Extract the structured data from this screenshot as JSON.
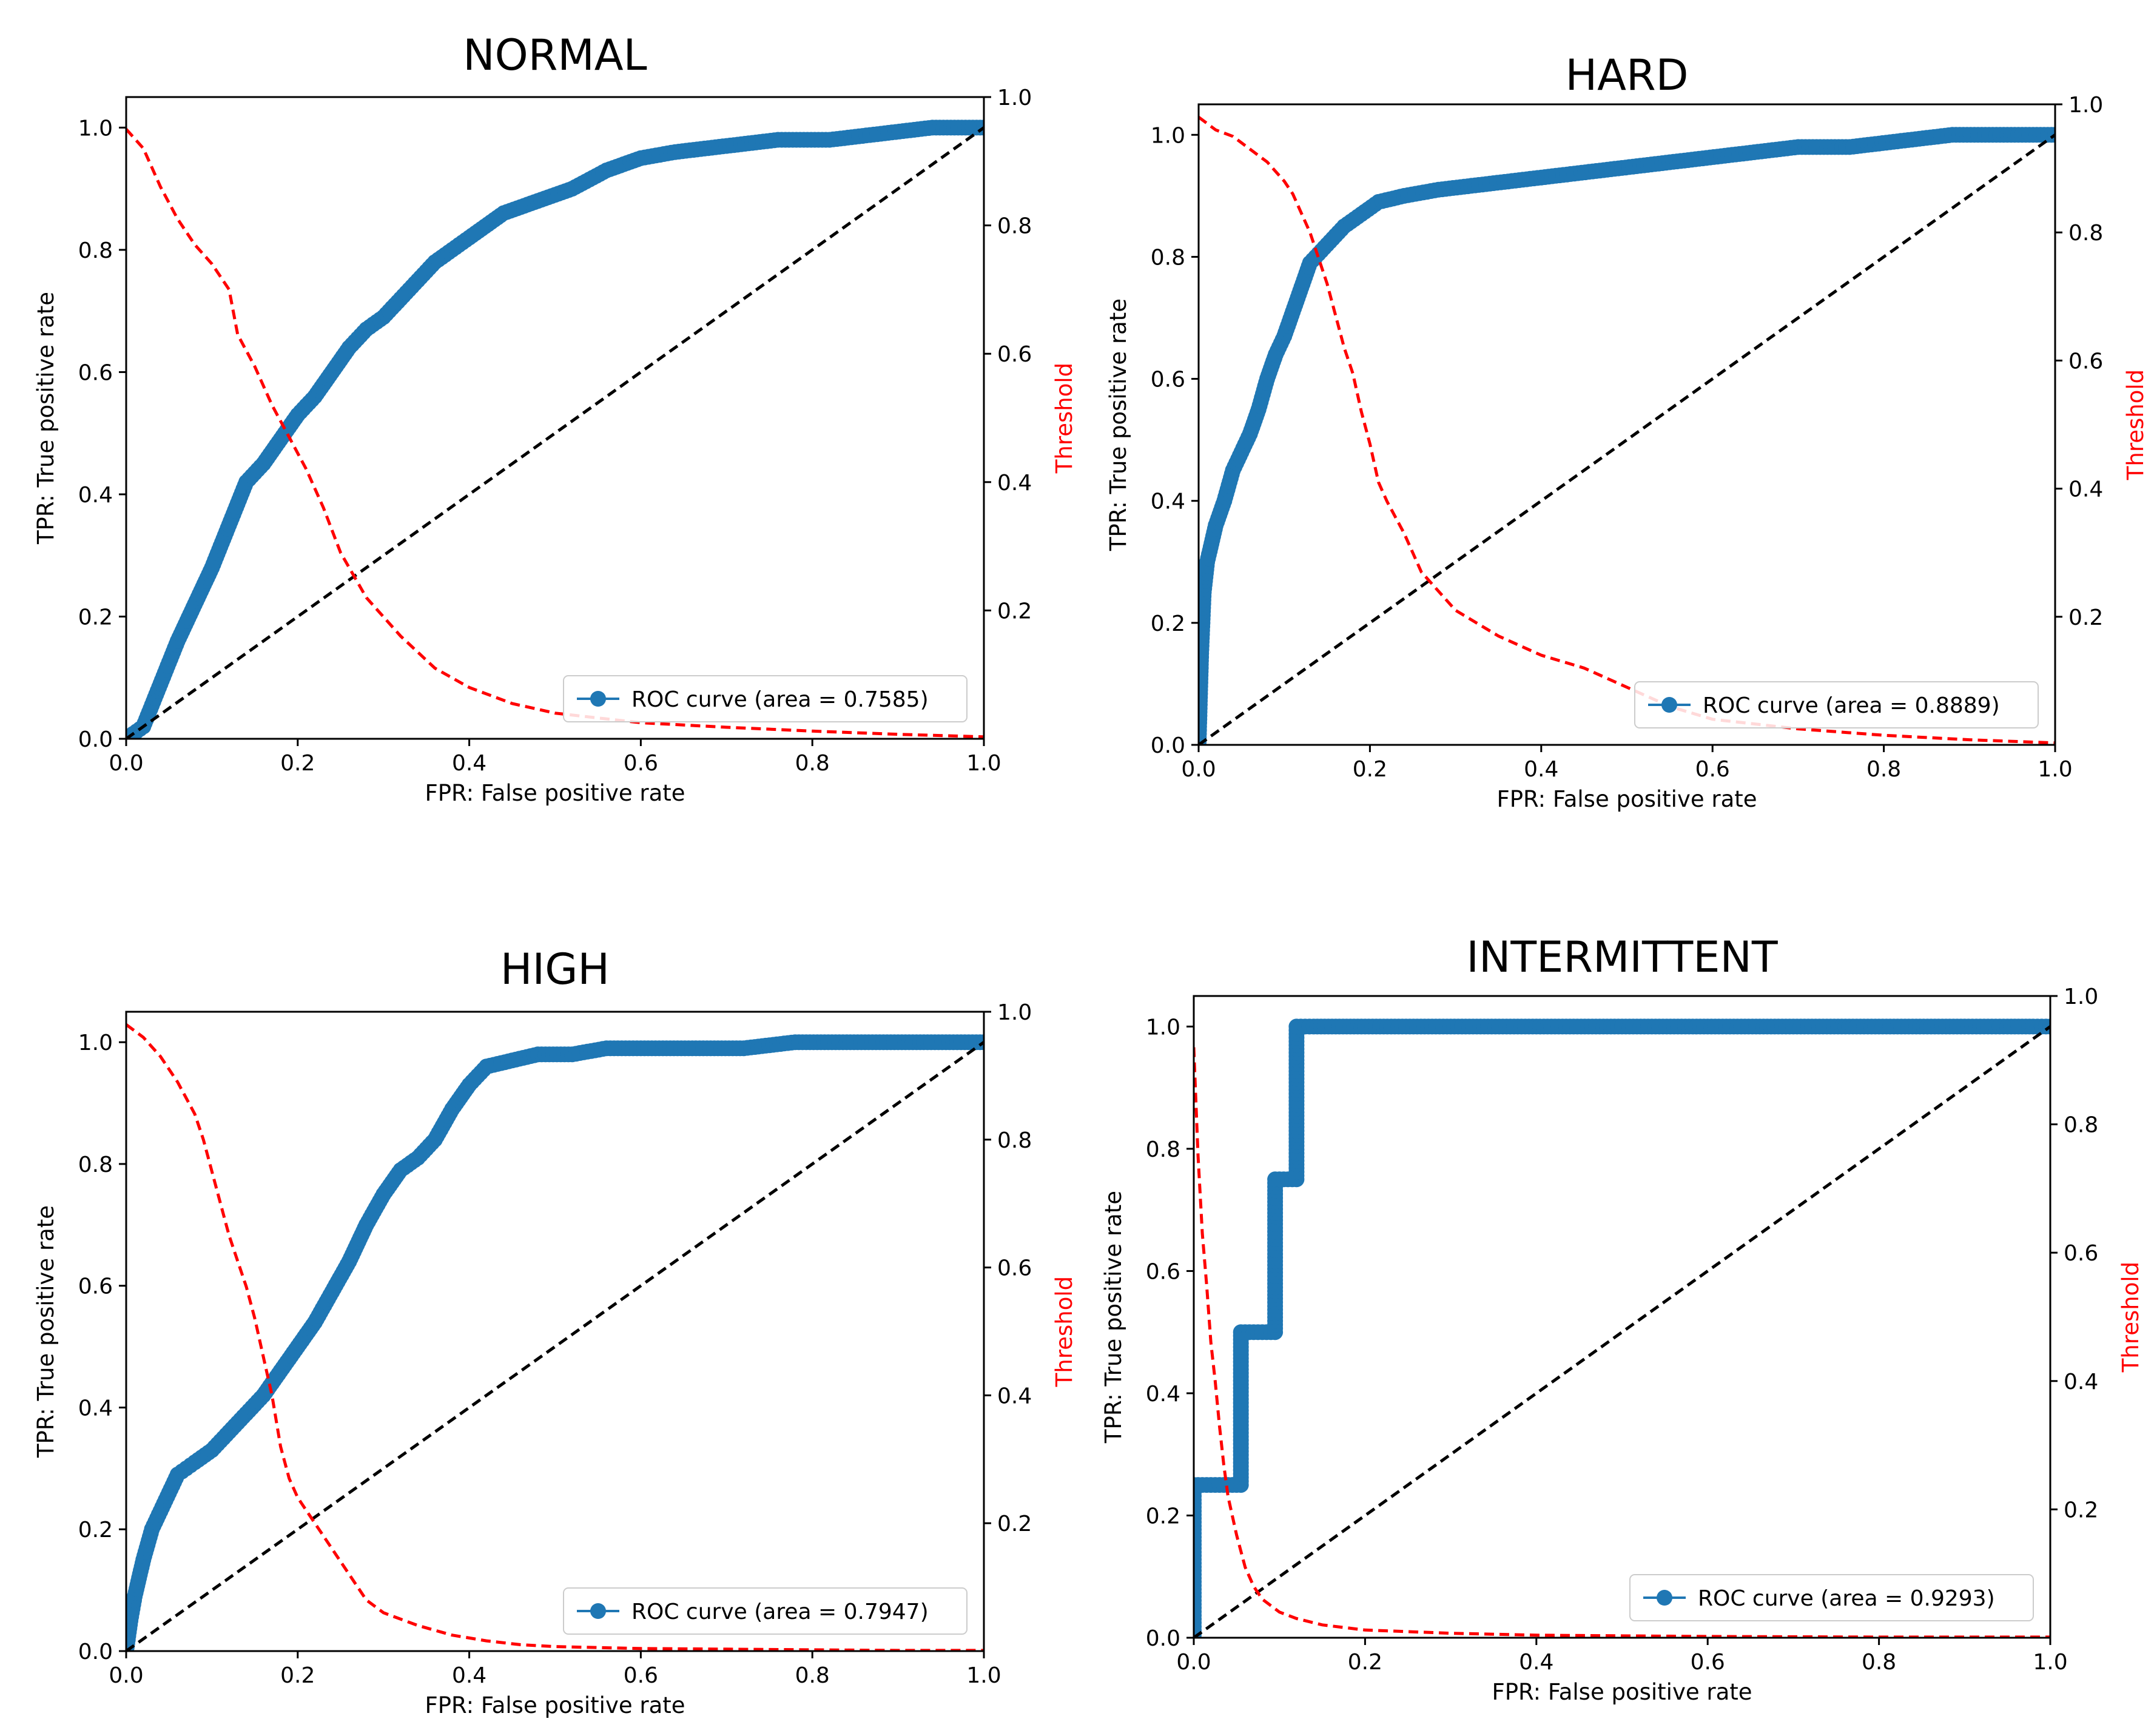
{
  "chart_data": [
    {
      "type": "line",
      "title": "NORMAL",
      "xlabel": "FPR: False positive rate",
      "ylabel": "TPR: True positive rate",
      "y2label": "Threshold",
      "xlim": [
        0,
        1
      ],
      "ylim": [
        0,
        1.05
      ],
      "y2lim": [
        0,
        1
      ],
      "xticks": [
        "0.0",
        "0.2",
        "0.4",
        "0.6",
        "0.8",
        "1.0"
      ],
      "yticks": [
        "0.0",
        "0.2",
        "0.4",
        "0.6",
        "0.8",
        "1.0"
      ],
      "y2ticks": [
        "0.2",
        "0.4",
        "0.6",
        "0.8",
        "1.0"
      ],
      "legend": {
        "label": "ROC curve (area = 0.7585)",
        "position": "lower right"
      },
      "series": [
        {
          "name": "ROC curve (area = 0.7585)",
          "color": "#1f77b4",
          "style": "markers",
          "x": [
            0,
            0.02,
            0.04,
            0.06,
            0.08,
            0.1,
            0.12,
            0.14,
            0.16,
            0.18,
            0.2,
            0.22,
            0.24,
            0.26,
            0.28,
            0.3,
            0.32,
            0.34,
            0.36,
            0.38,
            0.4,
            0.44,
            0.48,
            0.52,
            0.56,
            0.6,
            0.64,
            0.7,
            0.76,
            0.82,
            0.88,
            0.94,
            1.0
          ],
          "y": [
            0,
            0.02,
            0.09,
            0.16,
            0.22,
            0.28,
            0.35,
            0.42,
            0.45,
            0.49,
            0.53,
            0.56,
            0.6,
            0.64,
            0.67,
            0.69,
            0.72,
            0.75,
            0.78,
            0.8,
            0.82,
            0.86,
            0.88,
            0.9,
            0.93,
            0.95,
            0.96,
            0.97,
            0.98,
            0.98,
            0.99,
            1.0,
            1.0
          ]
        },
        {
          "name": "Chance",
          "color": "#000000",
          "style": "dashed",
          "x": [
            0,
            1
          ],
          "y": [
            0,
            1
          ]
        },
        {
          "name": "Threshold",
          "color": "#ff0000",
          "style": "dashed",
          "axis": "y2",
          "x": [
            0,
            0.02,
            0.04,
            0.06,
            0.08,
            0.1,
            0.12,
            0.13,
            0.15,
            0.17,
            0.19,
            0.21,
            0.23,
            0.25,
            0.28,
            0.32,
            0.36,
            0.4,
            0.45,
            0.5,
            0.6,
            0.7,
            0.8,
            0.9,
            1.0
          ],
          "y": [
            0.95,
            0.92,
            0.86,
            0.81,
            0.77,
            0.74,
            0.7,
            0.63,
            0.58,
            0.52,
            0.47,
            0.42,
            0.36,
            0.29,
            0.22,
            0.16,
            0.11,
            0.08,
            0.055,
            0.04,
            0.025,
            0.018,
            0.012,
            0.007,
            0.003
          ]
        }
      ]
    },
    {
      "type": "line",
      "title": "HARD",
      "xlabel": "FPR: False positive rate",
      "ylabel": "TPR: True positive rate",
      "y2label": "Threshold",
      "xlim": [
        0,
        1
      ],
      "ylim": [
        0,
        1.05
      ],
      "y2lim": [
        0,
        1
      ],
      "xticks": [
        "0.0",
        "0.2",
        "0.4",
        "0.6",
        "0.8",
        "1.0"
      ],
      "yticks": [
        "0.0",
        "0.2",
        "0.4",
        "0.6",
        "0.8",
        "1.0"
      ],
      "y2ticks": [
        "0.2",
        "0.4",
        "0.6",
        "0.8",
        "1.0"
      ],
      "legend": {
        "label": "ROC curve (area = 0.8889)",
        "position": "lower right"
      },
      "series": [
        {
          "name": "ROC curve (area = 0.8889)",
          "color": "#1f77b4",
          "style": "markers",
          "x": [
            0,
            0.003,
            0.006,
            0.01,
            0.015,
            0.02,
            0.03,
            0.04,
            0.05,
            0.06,
            0.07,
            0.08,
            0.09,
            0.1,
            0.11,
            0.12,
            0.13,
            0.15,
            0.17,
            0.19,
            0.21,
            0.24,
            0.28,
            0.34,
            0.4,
            0.46,
            0.52,
            0.58,
            0.64,
            0.7,
            0.76,
            0.82,
            0.88,
            0.94,
            1.0
          ],
          "y": [
            0,
            0.15,
            0.25,
            0.3,
            0.33,
            0.36,
            0.4,
            0.45,
            0.48,
            0.51,
            0.55,
            0.6,
            0.64,
            0.67,
            0.71,
            0.75,
            0.79,
            0.82,
            0.85,
            0.87,
            0.89,
            0.9,
            0.91,
            0.92,
            0.93,
            0.94,
            0.95,
            0.96,
            0.97,
            0.98,
            0.98,
            0.99,
            1.0,
            1.0,
            1.0
          ]
        },
        {
          "name": "Chance",
          "color": "#000000",
          "style": "dashed",
          "x": [
            0,
            1
          ],
          "y": [
            0,
            1
          ]
        },
        {
          "name": "Threshold",
          "color": "#ff0000",
          "style": "dashed",
          "axis": "y2",
          "x": [
            0,
            0.02,
            0.04,
            0.06,
            0.08,
            0.1,
            0.11,
            0.12,
            0.13,
            0.14,
            0.15,
            0.16,
            0.17,
            0.18,
            0.19,
            0.2,
            0.21,
            0.22,
            0.24,
            0.26,
            0.3,
            0.35,
            0.4,
            0.45,
            0.5,
            0.55,
            0.6,
            0.7,
            0.8,
            0.9,
            1.0
          ],
          "y": [
            0.98,
            0.96,
            0.95,
            0.93,
            0.91,
            0.88,
            0.86,
            0.83,
            0.8,
            0.76,
            0.72,
            0.67,
            0.62,
            0.58,
            0.52,
            0.47,
            0.41,
            0.38,
            0.33,
            0.27,
            0.21,
            0.17,
            0.14,
            0.12,
            0.09,
            0.06,
            0.04,
            0.025,
            0.015,
            0.008,
            0.003
          ]
        }
      ]
    },
    {
      "type": "line",
      "title": "HIGH",
      "xlabel": "FPR: False positive rate",
      "ylabel": "TPR: True positive rate",
      "y2label": "Threshold",
      "xlim": [
        0,
        1
      ],
      "ylim": [
        0,
        1.05
      ],
      "y2lim": [
        0,
        1
      ],
      "xticks": [
        "0.0",
        "0.2",
        "0.4",
        "0.6",
        "0.8",
        "1.0"
      ],
      "yticks": [
        "0.0",
        "0.2",
        "0.4",
        "0.6",
        "0.8",
        "1.0"
      ],
      "y2ticks": [
        "0.2",
        "0.4",
        "0.6",
        "0.8",
        "1.0"
      ],
      "legend": {
        "label": "ROC curve (area = 0.7947)",
        "position": "lower right"
      },
      "series": [
        {
          "name": "ROC curve (area = 0.7947)",
          "color": "#1f77b4",
          "style": "markers",
          "x": [
            0,
            0.005,
            0.01,
            0.02,
            0.03,
            0.04,
            0.05,
            0.06,
            0.07,
            0.08,
            0.1,
            0.12,
            0.14,
            0.16,
            0.18,
            0.2,
            0.22,
            0.24,
            0.26,
            0.28,
            0.3,
            0.32,
            0.34,
            0.36,
            0.38,
            0.4,
            0.42,
            0.45,
            0.48,
            0.52,
            0.56,
            0.6,
            0.66,
            0.72,
            0.78,
            0.84,
            0.9,
            0.96,
            1.0
          ],
          "y": [
            0,
            0.05,
            0.09,
            0.15,
            0.2,
            0.23,
            0.26,
            0.29,
            0.3,
            0.31,
            0.33,
            0.36,
            0.39,
            0.42,
            0.46,
            0.5,
            0.54,
            0.59,
            0.64,
            0.7,
            0.75,
            0.79,
            0.81,
            0.84,
            0.89,
            0.93,
            0.96,
            0.97,
            0.98,
            0.98,
            0.99,
            0.99,
            0.99,
            0.99,
            1.0,
            1.0,
            1.0,
            1.0,
            1.0
          ]
        },
        {
          "name": "Chance",
          "color": "#000000",
          "style": "dashed",
          "x": [
            0,
            1
          ],
          "y": [
            0,
            1
          ]
        },
        {
          "name": "Threshold",
          "color": "#ff0000",
          "style": "dashed",
          "axis": "y2",
          "x": [
            0,
            0.02,
            0.04,
            0.06,
            0.08,
            0.09,
            0.1,
            0.11,
            0.12,
            0.13,
            0.14,
            0.15,
            0.16,
            0.17,
            0.18,
            0.19,
            0.2,
            0.22,
            0.24,
            0.26,
            0.28,
            0.3,
            0.34,
            0.38,
            0.42,
            0.46,
            0.5,
            0.6,
            0.7,
            0.8,
            0.9,
            1.0
          ],
          "y": [
            0.98,
            0.96,
            0.93,
            0.89,
            0.84,
            0.8,
            0.75,
            0.7,
            0.65,
            0.61,
            0.57,
            0.52,
            0.46,
            0.4,
            0.32,
            0.27,
            0.24,
            0.2,
            0.16,
            0.12,
            0.08,
            0.06,
            0.04,
            0.025,
            0.016,
            0.01,
            0.007,
            0.004,
            0.003,
            0.002,
            0.001,
            0.001
          ]
        }
      ]
    },
    {
      "type": "line",
      "title": "INTERMITTENT",
      "xlabel": "FPR: False positive rate",
      "ylabel": "TPR: True positive rate",
      "y2label": "Threshold",
      "xlim": [
        0,
        1
      ],
      "ylim": [
        0,
        1.05
      ],
      "y2lim": [
        0,
        1
      ],
      "xticks": [
        "0.0",
        "0.2",
        "0.4",
        "0.6",
        "0.8",
        "1.0"
      ],
      "yticks": [
        "0.0",
        "0.2",
        "0.4",
        "0.6",
        "0.8",
        "1.0"
      ],
      "y2ticks": [
        "0.2",
        "0.4",
        "0.6",
        "0.8",
        "1.0"
      ],
      "legend": {
        "label": "ROC curve (area = 0.9293)",
        "position": "lower right"
      },
      "series": [
        {
          "name": "ROC curve (area = 0.9293)",
          "color": "#1f77b4",
          "style": "steps",
          "x": [
            0,
            0,
            0.01,
            0.02,
            0.03,
            0.04,
            0.05,
            0.055,
            0.055,
            0.06,
            0.07,
            0.08,
            0.09,
            0.095,
            0.095,
            0.1,
            0.11,
            0.115,
            0.12,
            0.12,
            0.14,
            0.2,
            0.3,
            0.4,
            0.5,
            0.6,
            0.7,
            0.8,
            0.9,
            0.95,
            0.98,
            1.0
          ],
          "y": [
            0,
            0.25,
            0.25,
            0.25,
            0.25,
            0.25,
            0.25,
            0.25,
            0.5,
            0.5,
            0.5,
            0.5,
            0.5,
            0.5,
            0.75,
            0.75,
            0.75,
            0.75,
            0.75,
            1.0,
            1.0,
            1.0,
            1.0,
            1.0,
            1.0,
            1.0,
            1.0,
            1.0,
            1.0,
            1.0,
            1.0,
            1.0
          ]
        },
        {
          "name": "Chance",
          "color": "#000000",
          "style": "dashed",
          "x": [
            0,
            1
          ],
          "y": [
            0,
            1
          ]
        },
        {
          "name": "Threshold",
          "color": "#ff0000",
          "style": "dashed",
          "axis": "y2",
          "x": [
            0,
            0.005,
            0.01,
            0.015,
            0.02,
            0.025,
            0.03,
            0.035,
            0.04,
            0.05,
            0.06,
            0.07,
            0.08,
            0.1,
            0.12,
            0.15,
            0.2,
            0.3,
            0.4,
            0.6,
            0.8,
            1.0
          ],
          "y": [
            0.92,
            0.75,
            0.63,
            0.55,
            0.46,
            0.4,
            0.33,
            0.27,
            0.22,
            0.16,
            0.11,
            0.08,
            0.06,
            0.04,
            0.03,
            0.02,
            0.012,
            0.007,
            0.004,
            0.002,
            0.001,
            0.001
          ]
        }
      ]
    }
  ],
  "colors": {
    "roc": "#1f77b4",
    "threshold": "#ff0000",
    "chance": "#000000"
  }
}
